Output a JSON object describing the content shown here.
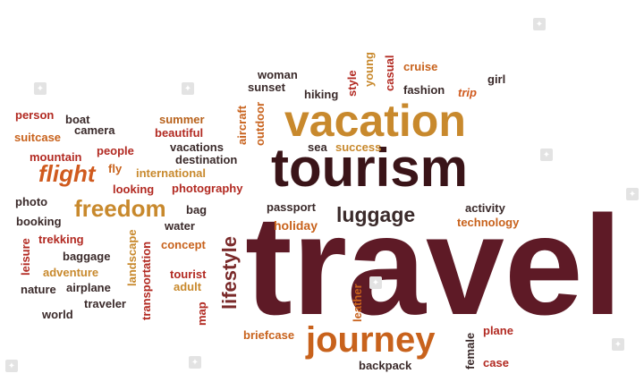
{
  "words": [
    {
      "text": "travel",
      "color": "#5e1a26"
    },
    {
      "text": "tourism",
      "color": "#3a1418"
    },
    {
      "text": "vacation",
      "color": "#c8892d"
    },
    {
      "text": "journey",
      "color": "#c8621c"
    },
    {
      "text": "luggage",
      "color": "#3a2a2a"
    },
    {
      "text": "freedom",
      "color": "#c8892d"
    },
    {
      "text": "flight",
      "color": "#d05a1e"
    },
    {
      "text": "lifestyle",
      "color": "#7a2a2a"
    },
    {
      "text": "person",
      "color": "#b22a22"
    },
    {
      "text": "boat",
      "color": "#3a2a2a"
    },
    {
      "text": "camera",
      "color": "#3a2a2a"
    },
    {
      "text": "summer",
      "color": "#b8621c"
    },
    {
      "text": "beautiful",
      "color": "#b22a22"
    },
    {
      "text": "suitcase",
      "color": "#c8621c"
    },
    {
      "text": "people",
      "color": "#b22a22"
    },
    {
      "text": "mountain",
      "color": "#b22a22"
    },
    {
      "text": "vacations",
      "color": "#3a2a2a"
    },
    {
      "text": "destination",
      "color": "#3a2a2a"
    },
    {
      "text": "international",
      "color": "#c8892d"
    },
    {
      "text": "fly",
      "color": "#c8621c"
    },
    {
      "text": "looking",
      "color": "#b22a22"
    },
    {
      "text": "photography",
      "color": "#b22a22"
    },
    {
      "text": "photo",
      "color": "#3a2a2a"
    },
    {
      "text": "bag",
      "color": "#3a2a2a"
    },
    {
      "text": "booking",
      "color": "#3a2a2a"
    },
    {
      "text": "water",
      "color": "#3a2a2a"
    },
    {
      "text": "trekking",
      "color": "#b22a22"
    },
    {
      "text": "concept",
      "color": "#c8621c"
    },
    {
      "text": "baggage",
      "color": "#3a2a2a"
    },
    {
      "text": "adventure",
      "color": "#c8892d"
    },
    {
      "text": "tourist",
      "color": "#b22a22"
    },
    {
      "text": "nature",
      "color": "#3a2a2a"
    },
    {
      "text": "airplane",
      "color": "#3a2a2a"
    },
    {
      "text": "adult",
      "color": "#c8892d"
    },
    {
      "text": "traveler",
      "color": "#3a2a2a"
    },
    {
      "text": "world",
      "color": "#3a2a2a"
    },
    {
      "text": "leisure",
      "color": "#b22a22"
    },
    {
      "text": "landscape",
      "color": "#c8892d"
    },
    {
      "text": "transportation",
      "color": "#b22a22"
    },
    {
      "text": "map",
      "color": "#b22a22"
    },
    {
      "text": "aircraft",
      "color": "#c8621c"
    },
    {
      "text": "outdoor",
      "color": "#c8621c"
    },
    {
      "text": "woman",
      "color": "#3a2a2a"
    },
    {
      "text": "sunset",
      "color": "#3a2a2a"
    },
    {
      "text": "hiking",
      "color": "#3a2a2a"
    },
    {
      "text": "style",
      "color": "#b22a22"
    },
    {
      "text": "young",
      "color": "#c8892d"
    },
    {
      "text": "casual",
      "color": "#b22a22"
    },
    {
      "text": "cruise",
      "color": "#c8621c"
    },
    {
      "text": "fashion",
      "color": "#3a2a2a"
    },
    {
      "text": "trip",
      "color": "#d05a1e"
    },
    {
      "text": "girl",
      "color": "#3a2a2a"
    },
    {
      "text": "sea",
      "color": "#3a2a2a"
    },
    {
      "text": "success",
      "color": "#c8892d"
    },
    {
      "text": "passport",
      "color": "#3a2a2a"
    },
    {
      "text": "holiday",
      "color": "#c8621c"
    },
    {
      "text": "activity",
      "color": "#3a2a2a"
    },
    {
      "text": "technology",
      "color": "#c8621c"
    },
    {
      "text": "briefcase",
      "color": "#c8621c"
    },
    {
      "text": "leather",
      "color": "#c8621c"
    },
    {
      "text": "female",
      "color": "#3a2a2a"
    },
    {
      "text": "plane",
      "color": "#b22a22"
    },
    {
      "text": "backpack",
      "color": "#3a2a2a"
    },
    {
      "text": "case",
      "color": "#b22a22"
    }
  ]
}
